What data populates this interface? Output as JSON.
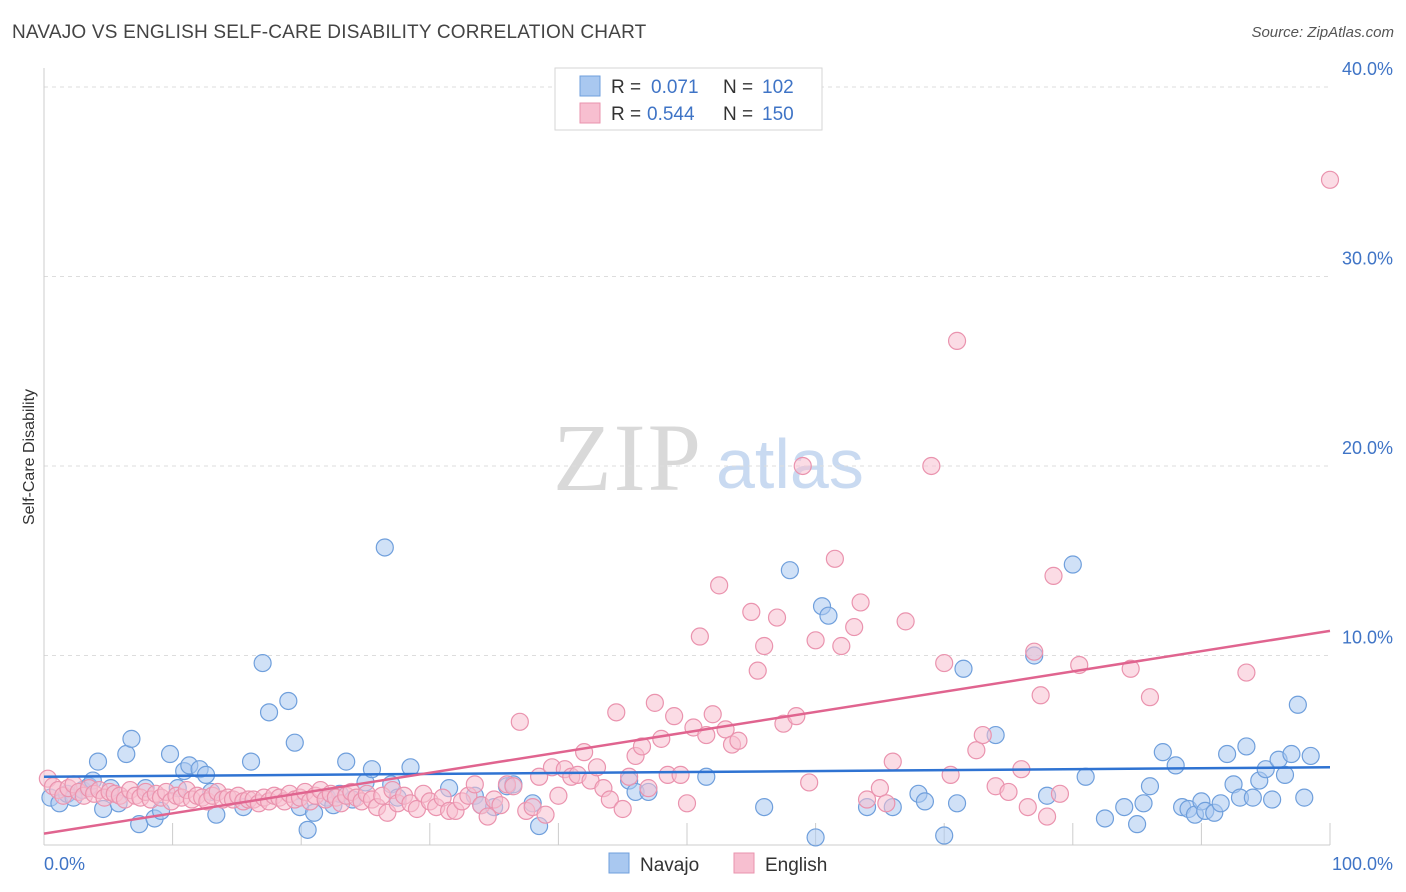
{
  "header": {
    "title": "NAVAJO VS ENGLISH SELF-CARE DISABILITY CORRELATION CHART",
    "source": "Source: ZipAtlas.com"
  },
  "watermark": {
    "zip": "ZIP",
    "atlas": "atlas"
  },
  "colors": {
    "navajo_fill": "#a9c8f0",
    "navajo_stroke": "#6f9fdc",
    "navajo_line": "#2f73d2",
    "english_fill": "#f7bfd0",
    "english_stroke": "#ea93ae",
    "english_line": "#e0648f",
    "value_blue": "#3f74c6",
    "grid": "#dddddd"
  },
  "stats_legend": [
    {
      "r_label": "R =",
      "r_value": "0.071",
      "n_label": "N =",
      "n_value": "102"
    },
    {
      "r_label": "R =",
      "r_value": "0.544",
      "n_label": "N =",
      "n_value": "150"
    }
  ],
  "chart_data": {
    "type": "scatter",
    "title": "NAVAJO VS ENGLISH SELF-CARE DISABILITY CORRELATION CHART",
    "xlabel": "",
    "ylabel": "Self-Care Disability",
    "xlim": [
      0,
      100
    ],
    "ylim": [
      0,
      41
    ],
    "x_tick_labels": [
      "0.0%",
      "100.0%"
    ],
    "y_ticks": [
      10,
      20,
      30,
      40
    ],
    "y_tick_labels": [
      "10.0%",
      "20.0%",
      "30.0%",
      "40.0%"
    ],
    "grid": true,
    "legend_position": "bottom-center",
    "series": [
      {
        "name": "Navajo",
        "r": 0.071,
        "n": 102,
        "trend": {
          "x": [
            0,
            100
          ],
          "y": [
            3.6,
            4.1
          ]
        },
        "points": [
          [
            0.5,
            2.5
          ],
          [
            1.2,
            2.2
          ],
          [
            1.8,
            2.7
          ],
          [
            2.3,
            2.5
          ],
          [
            3.0,
            2.9
          ],
          [
            3.5,
            3.1
          ],
          [
            3.8,
            3.4
          ],
          [
            4.2,
            4.4
          ],
          [
            4.6,
            1.9
          ],
          [
            5.2,
            3.0
          ],
          [
            5.8,
            2.2
          ],
          [
            6.4,
            4.8
          ],
          [
            6.8,
            5.6
          ],
          [
            7.4,
            1.1
          ],
          [
            7.9,
            3.0
          ],
          [
            8.6,
            1.4
          ],
          [
            9.1,
            1.8
          ],
          [
            9.8,
            4.8
          ],
          [
            10.4,
            3.0
          ],
          [
            10.9,
            3.9
          ],
          [
            11.3,
            4.2
          ],
          [
            12.1,
            4.0
          ],
          [
            12.6,
            3.7
          ],
          [
            13.0,
            2.8
          ],
          [
            13.4,
            1.6
          ],
          [
            15.5,
            2.0
          ],
          [
            16.1,
            4.4
          ],
          [
            17.0,
            9.6
          ],
          [
            17.5,
            7.0
          ],
          [
            19.0,
            7.6
          ],
          [
            19.5,
            5.4
          ],
          [
            19.9,
            2.0
          ],
          [
            20.5,
            0.8
          ],
          [
            21.0,
            1.7
          ],
          [
            22.0,
            2.5
          ],
          [
            22.5,
            2.1
          ],
          [
            23.0,
            2.7
          ],
          [
            23.5,
            4.4
          ],
          [
            24.0,
            2.4
          ],
          [
            25.0,
            3.3
          ],
          [
            25.5,
            4.0
          ],
          [
            26.5,
            15.7
          ],
          [
            27.0,
            3.2
          ],
          [
            27.5,
            2.5
          ],
          [
            28.5,
            4.1
          ],
          [
            31.5,
            3.0
          ],
          [
            33.5,
            2.6
          ],
          [
            34.0,
            2.1
          ],
          [
            35.0,
            2.0
          ],
          [
            36.0,
            3.1
          ],
          [
            36.5,
            3.2
          ],
          [
            38.0,
            2.2
          ],
          [
            38.5,
            1.0
          ],
          [
            45.5,
            3.4
          ],
          [
            46.0,
            2.8
          ],
          [
            47.0,
            2.8
          ],
          [
            51.5,
            3.6
          ],
          [
            56.0,
            2.0
          ],
          [
            58.0,
            14.5
          ],
          [
            60.0,
            0.4
          ],
          [
            60.5,
            12.6
          ],
          [
            61.0,
            12.1
          ],
          [
            64.0,
            2.0
          ],
          [
            66.0,
            2.0
          ],
          [
            68.0,
            2.7
          ],
          [
            68.5,
            2.3
          ],
          [
            70.0,
            0.5
          ],
          [
            71.0,
            2.2
          ],
          [
            71.5,
            9.3
          ],
          [
            74.0,
            5.8
          ],
          [
            77.0,
            10.0
          ],
          [
            78.0,
            2.6
          ],
          [
            80.0,
            14.8
          ],
          [
            81.0,
            3.6
          ],
          [
            82.5,
            1.4
          ],
          [
            84.0,
            2.0
          ],
          [
            85.0,
            1.1
          ],
          [
            85.5,
            2.2
          ],
          [
            86.0,
            3.1
          ],
          [
            87.0,
            4.9
          ],
          [
            88.0,
            4.2
          ],
          [
            88.5,
            2.0
          ],
          [
            89.0,
            1.9
          ],
          [
            89.5,
            1.6
          ],
          [
            90.0,
            2.3
          ],
          [
            90.3,
            1.8
          ],
          [
            91.0,
            1.7
          ],
          [
            91.5,
            2.2
          ],
          [
            92.0,
            4.8
          ],
          [
            92.5,
            3.2
          ],
          [
            93.0,
            2.5
          ],
          [
            93.5,
            5.2
          ],
          [
            94.0,
            2.5
          ],
          [
            94.5,
            3.4
          ],
          [
            95.0,
            4.0
          ],
          [
            95.5,
            2.4
          ],
          [
            96.0,
            4.5
          ],
          [
            96.5,
            3.7
          ],
          [
            97.0,
            4.8
          ],
          [
            97.5,
            7.4
          ],
          [
            98.0,
            2.5
          ],
          [
            98.5,
            4.7
          ]
        ]
      },
      {
        "name": "English",
        "r": 0.544,
        "n": 150,
        "trend": {
          "x": [
            0,
            100
          ],
          "y": [
            0.6,
            11.3
          ]
        },
        "points": [
          [
            0.3,
            3.5
          ],
          [
            0.7,
            3.1
          ],
          [
            1.1,
            2.9
          ],
          [
            1.5,
            2.6
          ],
          [
            1.9,
            3.0
          ],
          [
            2.3,
            3.2
          ],
          [
            2.7,
            2.8
          ],
          [
            3.1,
            2.6
          ],
          [
            3.5,
            3.0
          ],
          [
            3.9,
            2.7
          ],
          [
            4.3,
            2.9
          ],
          [
            4.7,
            2.5
          ],
          [
            5.1,
            2.8
          ],
          [
            5.5,
            2.7
          ],
          [
            5.9,
            2.6
          ],
          [
            6.3,
            2.4
          ],
          [
            6.7,
            2.9
          ],
          [
            7.1,
            2.6
          ],
          [
            7.5,
            2.5
          ],
          [
            7.9,
            2.8
          ],
          [
            8.3,
            2.4
          ],
          [
            8.7,
            2.7
          ],
          [
            9.1,
            2.5
          ],
          [
            9.5,
            2.8
          ],
          [
            9.9,
            2.3
          ],
          [
            10.3,
            2.6
          ],
          [
            10.7,
            2.5
          ],
          [
            11.1,
            2.9
          ],
          [
            11.5,
            2.4
          ],
          [
            11.9,
            2.6
          ],
          [
            12.3,
            2.5
          ],
          [
            12.7,
            2.3
          ],
          [
            13.1,
            2.6
          ],
          [
            13.5,
            2.8
          ],
          [
            13.9,
            2.4
          ],
          [
            14.3,
            2.5
          ],
          [
            14.7,
            2.4
          ],
          [
            15.1,
            2.6
          ],
          [
            15.5,
            2.3
          ],
          [
            15.9,
            2.4
          ],
          [
            16.3,
            2.4
          ],
          [
            16.7,
            2.2
          ],
          [
            17.1,
            2.5
          ],
          [
            17.5,
            2.3
          ],
          [
            17.9,
            2.6
          ],
          [
            18.3,
            2.5
          ],
          [
            18.7,
            2.3
          ],
          [
            19.1,
            2.7
          ],
          [
            19.5,
            2.4
          ],
          [
            19.9,
            2.5
          ],
          [
            20.3,
            2.8
          ],
          [
            20.7,
            2.3
          ],
          [
            21.1,
            2.6
          ],
          [
            21.5,
            2.9
          ],
          [
            21.9,
            2.4
          ],
          [
            22.3,
            2.7
          ],
          [
            22.7,
            2.5
          ],
          [
            23.1,
            2.2
          ],
          [
            23.5,
            2.6
          ],
          [
            23.9,
            2.8
          ],
          [
            24.3,
            2.5
          ],
          [
            24.7,
            2.3
          ],
          [
            25.1,
            2.7
          ],
          [
            25.5,
            2.4
          ],
          [
            25.9,
            2.0
          ],
          [
            26.3,
            2.6
          ],
          [
            26.7,
            1.7
          ],
          [
            27.1,
            2.9
          ],
          [
            27.5,
            2.2
          ],
          [
            28.0,
            2.6
          ],
          [
            28.5,
            2.2
          ],
          [
            29.0,
            1.9
          ],
          [
            29.5,
            2.7
          ],
          [
            30.0,
            2.3
          ],
          [
            30.5,
            2.0
          ],
          [
            31.0,
            2.5
          ],
          [
            31.5,
            1.8
          ],
          [
            32.0,
            1.8
          ],
          [
            32.5,
            2.3
          ],
          [
            33.0,
            2.6
          ],
          [
            33.5,
            3.2
          ],
          [
            34.0,
            2.1
          ],
          [
            34.5,
            1.5
          ],
          [
            35.0,
            2.4
          ],
          [
            35.5,
            2.1
          ],
          [
            36.0,
            3.2
          ],
          [
            36.5,
            3.1
          ],
          [
            37.0,
            6.5
          ],
          [
            37.5,
            1.8
          ],
          [
            38.0,
            2.0
          ],
          [
            38.5,
            3.6
          ],
          [
            39.0,
            1.6
          ],
          [
            39.5,
            4.1
          ],
          [
            40.0,
            2.6
          ],
          [
            40.5,
            4.0
          ],
          [
            41.0,
            3.6
          ],
          [
            41.5,
            3.7
          ],
          [
            42.0,
            4.9
          ],
          [
            42.5,
            3.4
          ],
          [
            43.0,
            4.1
          ],
          [
            43.5,
            3.0
          ],
          [
            44.0,
            2.4
          ],
          [
            44.5,
            7.0
          ],
          [
            45.0,
            1.9
          ],
          [
            45.5,
            3.6
          ],
          [
            46.0,
            4.7
          ],
          [
            46.5,
            5.2
          ],
          [
            47.0,
            3.0
          ],
          [
            47.5,
            7.5
          ],
          [
            48.0,
            5.6
          ],
          [
            48.5,
            3.7
          ],
          [
            49.0,
            6.8
          ],
          [
            49.5,
            3.7
          ],
          [
            50.0,
            2.2
          ],
          [
            50.5,
            6.2
          ],
          [
            51.0,
            11.0
          ],
          [
            51.5,
            5.8
          ],
          [
            52.0,
            6.9
          ],
          [
            52.5,
            13.7
          ],
          [
            53.0,
            6.1
          ],
          [
            53.5,
            5.3
          ],
          [
            54.0,
            5.5
          ],
          [
            55.0,
            12.3
          ],
          [
            55.5,
            9.2
          ],
          [
            56.0,
            10.5
          ],
          [
            57.0,
            12.0
          ],
          [
            57.5,
            6.4
          ],
          [
            58.5,
            6.8
          ],
          [
            59.0,
            20.0
          ],
          [
            59.5,
            3.3
          ],
          [
            60.0,
            10.8
          ],
          [
            61.5,
            15.1
          ],
          [
            62.0,
            10.5
          ],
          [
            63.0,
            11.5
          ],
          [
            63.5,
            12.8
          ],
          [
            64.0,
            2.4
          ],
          [
            65.0,
            3.0
          ],
          [
            65.5,
            2.2
          ],
          [
            66.0,
            4.4
          ],
          [
            67.0,
            11.8
          ],
          [
            69.0,
            20.0
          ],
          [
            70.0,
            9.6
          ],
          [
            70.5,
            3.7
          ],
          [
            71.0,
            26.6
          ],
          [
            72.5,
            5.0
          ],
          [
            73.0,
            5.8
          ],
          [
            74.0,
            3.1
          ],
          [
            75.0,
            2.8
          ],
          [
            76.0,
            4.0
          ],
          [
            76.5,
            2.0
          ],
          [
            77.0,
            10.2
          ],
          [
            77.5,
            7.9
          ],
          [
            78.0,
            1.5
          ],
          [
            78.5,
            14.2
          ],
          [
            79.0,
            2.7
          ],
          [
            80.5,
            9.5
          ],
          [
            84.5,
            9.3
          ],
          [
            86.0,
            7.8
          ],
          [
            93.5,
            9.1
          ],
          [
            100.0,
            35.1
          ]
        ]
      }
    ]
  },
  "bottom_legend": [
    {
      "label": "Navajo"
    },
    {
      "label": "English"
    }
  ]
}
